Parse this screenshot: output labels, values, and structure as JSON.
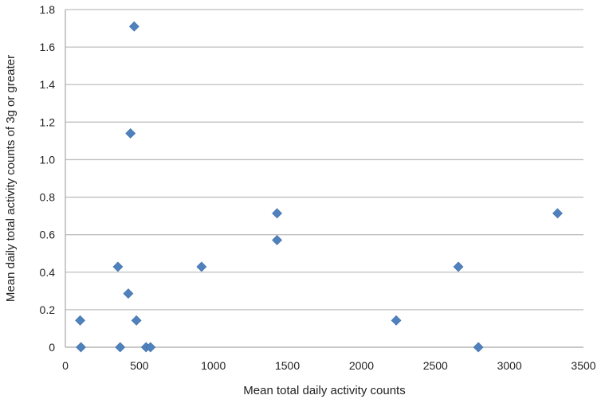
{
  "chart_data": {
    "type": "scatter",
    "title": "",
    "xlabel": "Mean total daily activity counts",
    "ylabel": "Mean daily total activity counts of 3g or greater",
    "xlim": [
      0,
      3500
    ],
    "ylim": [
      0,
      1.8
    ],
    "xticks": [
      0,
      500,
      1000,
      1500,
      2000,
      2500,
      3000,
      3500
    ],
    "xtick_labels": [
      "0",
      "500",
      "1000",
      "1500",
      "2000",
      "2500",
      "3000",
      "3500"
    ],
    "yticks": [
      0,
      0.2,
      0.4,
      0.6,
      0.8,
      1.0,
      1.2,
      1.4,
      1.6,
      1.8
    ],
    "ytick_labels": [
      "0",
      "0.2",
      "0.4",
      "0.6",
      "0.8",
      "1.0",
      "1.2",
      "1.4",
      "1.6",
      "1.8"
    ],
    "grid": "horizontal",
    "legend": "none",
    "marker": "diamond",
    "series": [
      {
        "color": "#4f81bd",
        "points": [
          {
            "x": 465,
            "y": 1.71
          },
          {
            "x": 440,
            "y": 1.14
          },
          {
            "x": 1430,
            "y": 0.714
          },
          {
            "x": 3325,
            "y": 0.714
          },
          {
            "x": 1430,
            "y": 0.571
          },
          {
            "x": 355,
            "y": 0.429
          },
          {
            "x": 920,
            "y": 0.429
          },
          {
            "x": 2655,
            "y": 0.429
          },
          {
            "x": 425,
            "y": 0.286
          },
          {
            "x": 100,
            "y": 0.143
          },
          {
            "x": 480,
            "y": 0.143
          },
          {
            "x": 2235,
            "y": 0.143
          },
          {
            "x": 105,
            "y": 0
          },
          {
            "x": 370,
            "y": 0
          },
          {
            "x": 545,
            "y": 0
          },
          {
            "x": 575,
            "y": 0
          },
          {
            "x": 2790,
            "y": 0
          }
        ]
      }
    ]
  }
}
